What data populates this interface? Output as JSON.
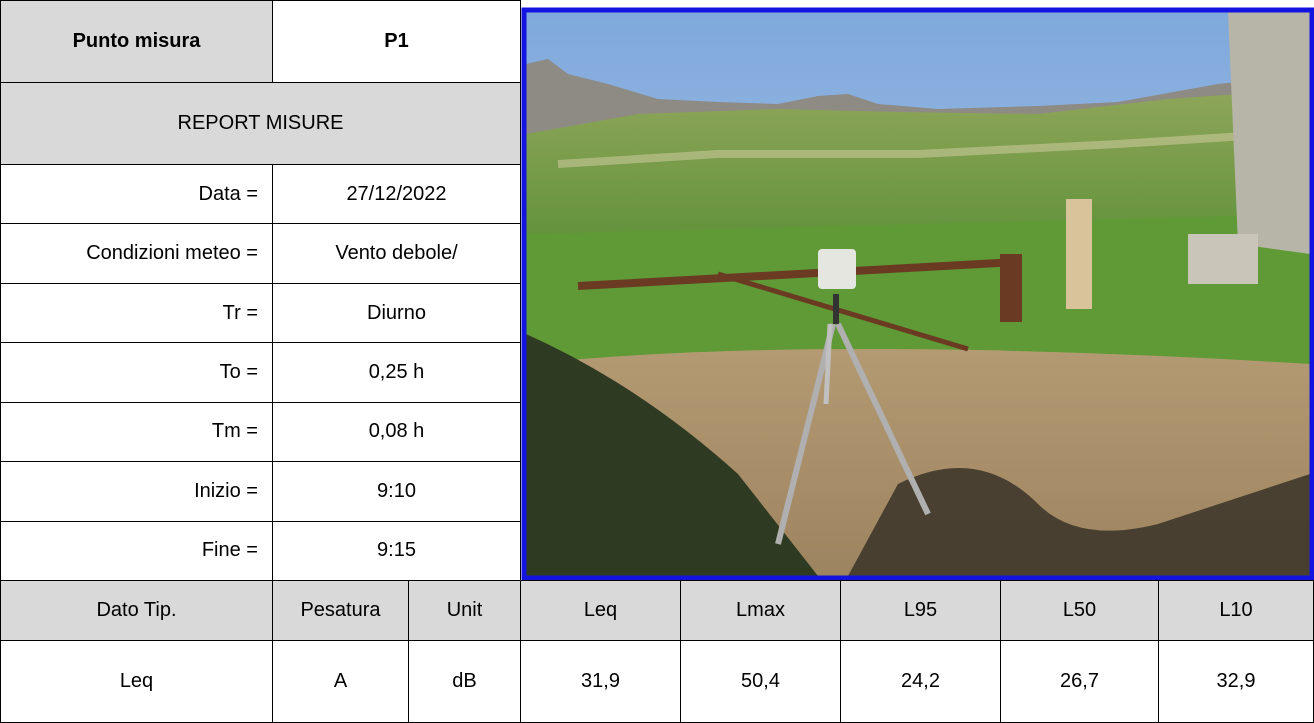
{
  "header": {
    "label": "Punto misura",
    "value": "P1"
  },
  "report_title": "REPORT MISURE",
  "fields": [
    {
      "label": "Data =",
      "value": "27/12/2022"
    },
    {
      "label": "Condizioni meteo =",
      "value": "Vento debole/"
    },
    {
      "label": "Tr =",
      "value": "Diurno"
    },
    {
      "label": "To =",
      "value": "0,25 h"
    },
    {
      "label": "Tm =",
      "value": "0,08 h"
    },
    {
      "label": "Inizio =",
      "value": "9:10"
    },
    {
      "label": "Fine =",
      "value": "9:15"
    }
  ],
  "table": {
    "header": [
      "Dato Tip.",
      "Pesatura",
      "Unit",
      "Leq",
      "Lmax",
      "L95",
      "L50",
      "L10"
    ],
    "rows": [
      [
        "Leq",
        "A",
        "dB",
        "31,9",
        "50,4",
        "24,2",
        "26,7",
        "32,9"
      ]
    ]
  }
}
